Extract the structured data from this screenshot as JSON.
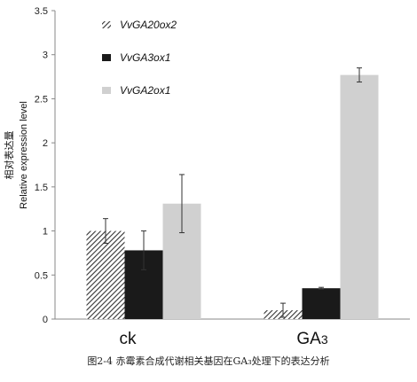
{
  "chart_data": {
    "type": "bar",
    "categories": [
      "ck",
      "GA3"
    ],
    "series": [
      {
        "name": "VvGA20ox2",
        "values": [
          1.0,
          0.1
        ],
        "errors": [
          0.14,
          0.08
        ],
        "pattern": "hatch",
        "color": "#333333"
      },
      {
        "name": "VvGA3ox1",
        "values": [
          0.78,
          0.35
        ],
        "errors": [
          0.22,
          0.01
        ],
        "pattern": "solid",
        "color": "#1a1a1a"
      },
      {
        "name": "VvGA2ox1",
        "values": [
          1.31,
          2.77
        ],
        "errors": [
          0.33,
          0.08
        ],
        "pattern": "solid",
        "color": "#d0d0d0"
      }
    ],
    "ylim": [
      0,
      3.5
    ],
    "yticks": [
      "0",
      "0.5",
      "1",
      "1.5",
      "2",
      "2.5",
      "3",
      "3.5"
    ],
    "ylabel_cn": "相对表达量",
    "ylabel": "Relative expression level",
    "legend_position": "top-left",
    "grid": false
  },
  "caption": "图2-4   赤霉素合成代谢相关基因在GA₃处理下的表达分析"
}
